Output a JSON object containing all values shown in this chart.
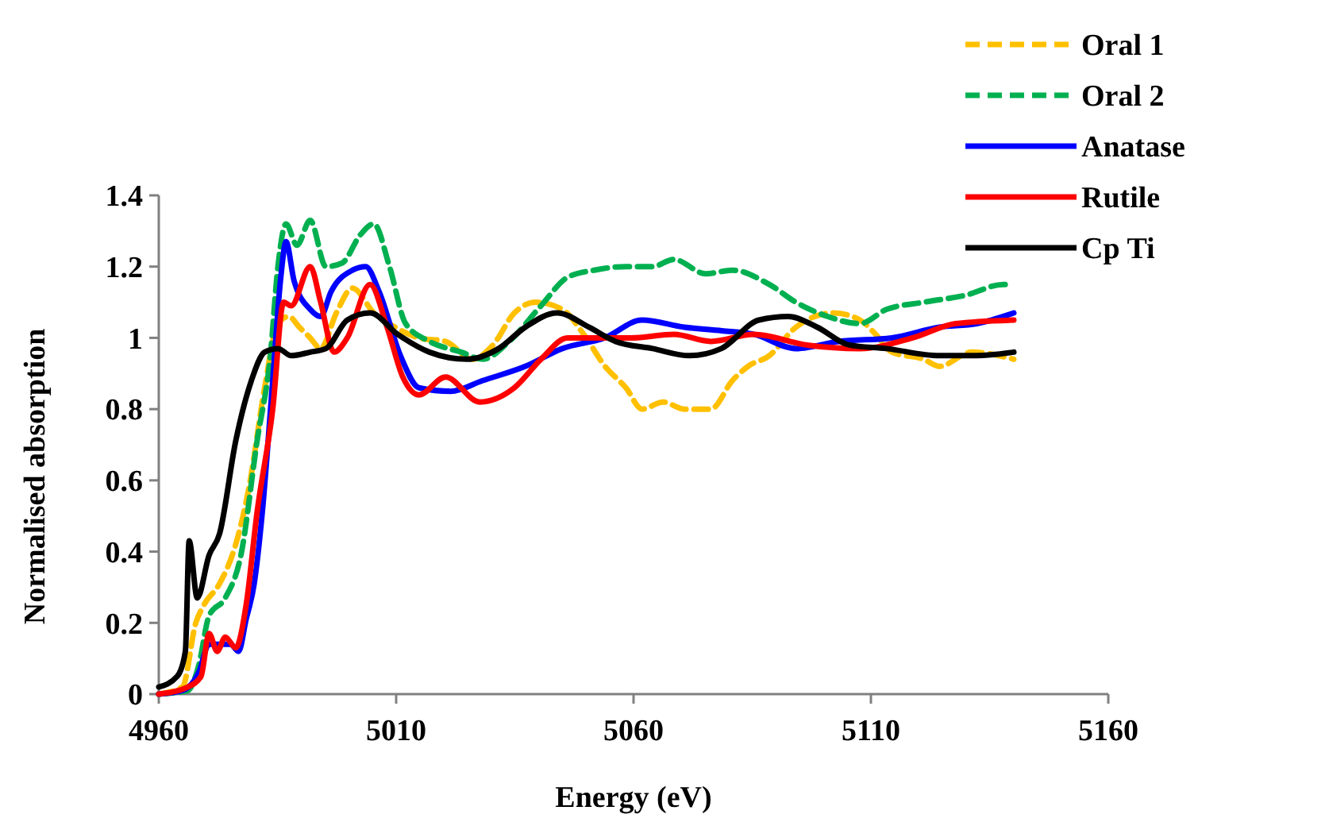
{
  "chart_data": {
    "type": "line",
    "xlabel": "Energy (eV)",
    "ylabel": "Normalised absorption",
    "xlim": [
      4960,
      5160
    ],
    "xticks": [
      4960,
      5010,
      5060,
      5110,
      5160
    ],
    "ylim": [
      0,
      1.4
    ],
    "yticks": [
      0,
      {
        "value": 0.2,
        "label": "0.2"
      },
      {
        "value": 0.4,
        "label": "0.4"
      },
      {
        "value": 0.6,
        "label": "0.6"
      },
      {
        "value": 0.8,
        "label": "0.8"
      },
      1,
      {
        "value": 1.2,
        "label": "1.2"
      },
      {
        "value": 1.4,
        "label": "1.4"
      }
    ],
    "grid": false,
    "legend": "top right",
    "marker": "none",
    "series": [
      {
        "name": "Oral 1",
        "color": "#ffc000",
        "line_style": "dashed",
        "x": [
          4960,
          4965,
          4967.8,
          4969.5,
          4972.8,
          4976.2,
          4979,
          4982.3,
          4985.1,
          4987.4,
          4989.6,
          4991.9,
          4994.1,
          4997.4,
          5000.8,
          5005.3,
          5009.8,
          5014.8,
          5020.4,
          5026,
          5030.4,
          5034.9,
          5039.4,
          5045,
          5049.5,
          5054,
          5058.4,
          5061.8,
          5066.2,
          5070.7,
          5076.3,
          5080.8,
          5084.1,
          5088.6,
          5094.2,
          5102.1,
          5107.7,
          5111,
          5114.4,
          5121.1,
          5124.4,
          5131.2,
          5140.1
        ],
        "values": [
          0.0,
          0.02,
          0.2,
          0.25,
          0.31,
          0.42,
          0.58,
          0.86,
          1.04,
          1.06,
          1.03,
          1.0,
          0.97,
          1.07,
          1.14,
          1.07,
          1.03,
          1.0,
          0.99,
          0.94,
          0.98,
          1.07,
          1.1,
          1.08,
          1.01,
          0.92,
          0.86,
          0.8,
          0.82,
          0.8,
          0.8,
          0.88,
          0.92,
          0.95,
          1.03,
          1.07,
          1.05,
          1.01,
          0.96,
          0.94,
          0.92,
          0.96,
          0.94
        ]
      },
      {
        "name": "Oral 2",
        "color": "#00b050",
        "line_style": "dashed",
        "x": [
          4960,
          4966.1,
          4968.4,
          4970.6,
          4974,
          4977.3,
          4980.7,
          4983.5,
          4985.1,
          4986.8,
          4989.1,
          4991.9,
          4995.2,
          4998.6,
          5002.5,
          5005.3,
          5008.6,
          5012,
          5017,
          5023.7,
          5028.2,
          5033.8,
          5040.5,
          5046.1,
          5051.7,
          5058.4,
          5064,
          5068.5,
          5075.2,
          5080.8,
          5088.6,
          5094.2,
          5100.9,
          5107.7,
          5113.3,
          5121.1,
          5130,
          5137.9,
          5139
        ],
        "values": [
          0.0,
          0.01,
          0.08,
          0.22,
          0.27,
          0.39,
          0.71,
          0.95,
          1.2,
          1.32,
          1.26,
          1.33,
          1.2,
          1.21,
          1.29,
          1.32,
          1.2,
          1.04,
          0.99,
          0.96,
          0.94,
          0.99,
          1.09,
          1.17,
          1.19,
          1.2,
          1.2,
          1.22,
          1.18,
          1.19,
          1.15,
          1.1,
          1.06,
          1.04,
          1.08,
          1.1,
          1.12,
          1.15,
          1.15
        ]
      },
      {
        "name": "Anatase",
        "color": "#0000ff",
        "line_style": "solid",
        "x": [
          4960,
          4965,
          4968.4,
          4970.6,
          4975.1,
          4976.8,
          4978.4,
          4980.1,
          4981.8,
          4984,
          4985.7,
          4986.8,
          4988.5,
          4991.9,
          4994.1,
          4996.3,
          5000.8,
          5003.6,
          5006.4,
          5010.9,
          5014.8,
          5021.5,
          5028.2,
          5037.2,
          5045,
          5053.9,
          5061.8,
          5070.7,
          5078.6,
          5085.3,
          5094.2,
          5103.2,
          5114.4,
          5124.4,
          5132.3,
          5140.1
        ],
        "values": [
          0.0,
          0.01,
          0.06,
          0.14,
          0.14,
          0.12,
          0.21,
          0.31,
          0.51,
          0.88,
          1.17,
          1.27,
          1.16,
          1.08,
          1.06,
          1.13,
          1.19,
          1.2,
          1.13,
          0.95,
          0.86,
          0.85,
          0.88,
          0.92,
          0.97,
          1.0,
          1.05,
          1.03,
          1.02,
          1.01,
          0.97,
          0.99,
          1.0,
          1.03,
          1.04,
          1.07
        ]
      },
      {
        "name": "Rutile",
        "color": "#ff0000",
        "line_style": "solid",
        "x": [
          4960,
          4966.1,
          4968.9,
          4970.6,
          4972.3,
          4974,
          4976.2,
          4978.4,
          4980.7,
          4984,
          4986.3,
          4987.9,
          4991.9,
          4994.1,
          4996.9,
          4999.7,
          5004.5,
          5008.1,
          5011.4,
          5014.8,
          5020.4,
          5027.6,
          5034.9,
          5040.5,
          5046.1,
          5051.7,
          5059.5,
          5068.5,
          5076.3,
          5085.3,
          5096.5,
          5107.7,
          5118.8,
          5127.8,
          5140.1
        ],
        "values": [
          0.0,
          0.02,
          0.05,
          0.17,
          0.12,
          0.16,
          0.13,
          0.25,
          0.51,
          0.8,
          1.1,
          1.09,
          1.2,
          1.1,
          0.96,
          1.0,
          1.15,
          1.03,
          0.89,
          0.84,
          0.89,
          0.82,
          0.86,
          0.94,
          1.0,
          1.0,
          1.0,
          1.01,
          0.99,
          1.01,
          0.98,
          0.97,
          1.0,
          1.04,
          1.05
        ]
      },
      {
        "name": "Cp Ti",
        "color": "#000000",
        "line_style": "solid",
        "x": [
          4960,
          4963.9,
          4965.6,
          4966.4,
          4968.1,
          4970.6,
          4972.8,
          4976.2,
          4979.5,
          4982.3,
          4985.1,
          4987.9,
          4991.9,
          4995.2,
          4999.7,
          5004.5,
          5010.3,
          5017,
          5024.9,
          5031.6,
          5037.2,
          5043.9,
          5050.6,
          5056.2,
          5064,
          5071.8,
          5078.5,
          5086.4,
          5092.6,
          5098.7,
          5105.4,
          5113.2,
          5124.4,
          5132.3,
          5140.1
        ],
        "values": [
          0.02,
          0.05,
          0.12,
          0.43,
          0.27,
          0.39,
          0.45,
          0.71,
          0.88,
          0.96,
          0.97,
          0.95,
          0.96,
          0.97,
          1.05,
          1.07,
          1.01,
          0.96,
          0.94,
          0.97,
          1.03,
          1.07,
          1.03,
          0.99,
          0.97,
          0.95,
          0.97,
          1.05,
          1.06,
          1.03,
          0.98,
          0.97,
          0.95,
          0.95,
          0.96
        ]
      }
    ]
  }
}
